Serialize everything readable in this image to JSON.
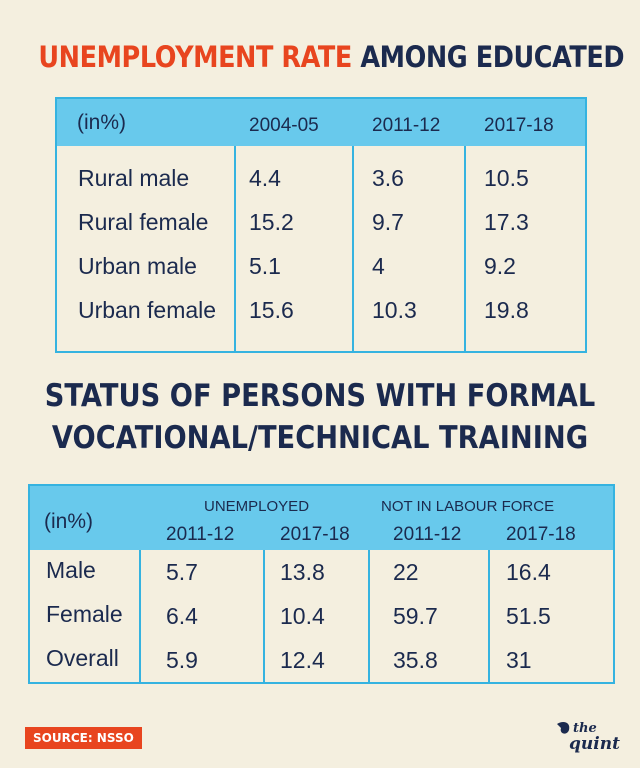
{
  "title1": {
    "highlight": "UNEMPLOYMENT RATE",
    "rest": "AMONG EDUCATED"
  },
  "title2": {
    "line1": "STATUS OF PERSONS WITH FORMAL",
    "line2": "VOCATIONAL/TECHNICAL TRAINING"
  },
  "source": "SOURCE: NSSO",
  "logo_name": "the quint",
  "colors": {
    "accent": "#e8451f",
    "navy": "#1b2a4e",
    "header_band": "#68c9ec",
    "border": "#35b3e0",
    "background": "#f4efdf"
  },
  "chart_data": [
    {
      "type": "table",
      "title": "UNEMPLOYMENT RATE AMONG EDUCATED",
      "unit_label": "(in%)",
      "columns": [
        "2004-05",
        "2011-12",
        "2017-18"
      ],
      "rows": [
        {
          "label": "Rural male",
          "values": [
            "4.4",
            "3.6",
            "10.5"
          ]
        },
        {
          "label": "Rural female",
          "values": [
            "15.2",
            "9.7",
            "17.3"
          ]
        },
        {
          "label": "Urban male",
          "values": [
            "5.1",
            "4",
            "9.2"
          ]
        },
        {
          "label": "Urban female",
          "values": [
            "15.6",
            "10.3",
            "19.8"
          ]
        }
      ]
    },
    {
      "type": "table",
      "title": "STATUS OF PERSONS WITH FORMAL VOCATIONAL/TECHNICAL TRAINING",
      "unit_label": "(in%)",
      "groups": [
        "UNEMPLOYED",
        "NOT IN LABOUR FORCE"
      ],
      "columns": [
        "2011-12",
        "2017-18",
        "2011-12",
        "2017-18"
      ],
      "rows": [
        {
          "label": "Male",
          "values": [
            "5.7",
            "13.8",
            "22",
            "16.4"
          ]
        },
        {
          "label": "Female",
          "values": [
            "6.4",
            "10.4",
            "59.7",
            "51.5"
          ]
        },
        {
          "label": "Overall",
          "values": [
            "5.9",
            "12.4",
            "35.8",
            "31"
          ]
        }
      ]
    }
  ]
}
